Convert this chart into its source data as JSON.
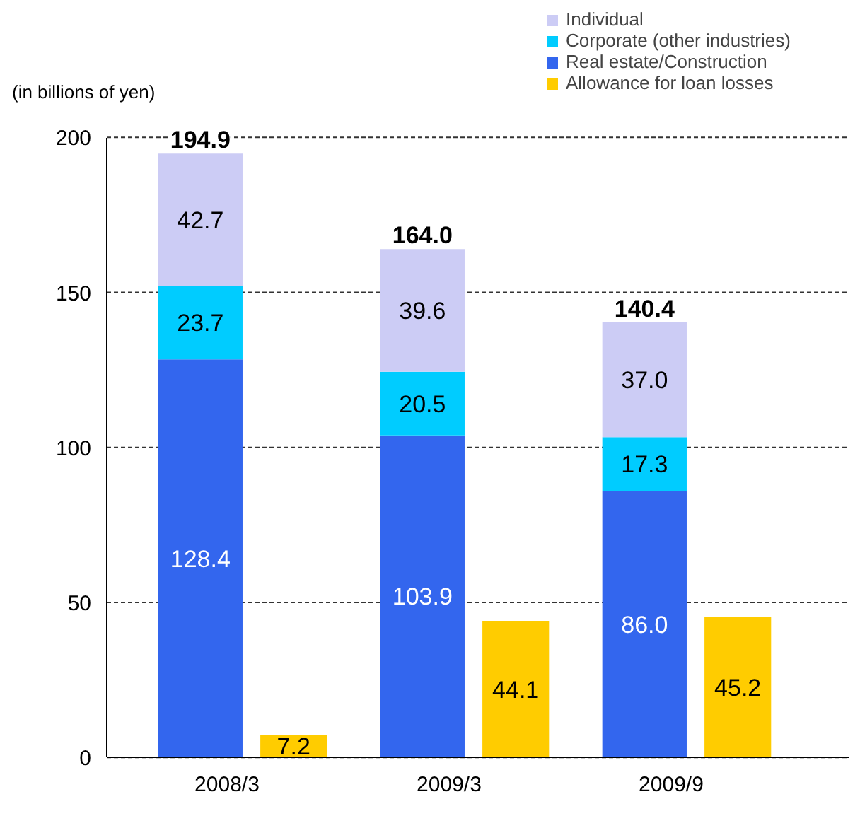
{
  "chart_data": {
    "type": "bar",
    "ylabel": "(in billions of yen)",
    "categories": [
      "2008/3",
      "2009/3",
      "2009/9"
    ],
    "ylim": [
      0,
      200
    ],
    "yticks": [
      0,
      50,
      100,
      150,
      200
    ],
    "grid": "y",
    "legend": "top right",
    "data_labels": true,
    "annotations": [
      {
        "text": "194.9",
        "x": "2008/3",
        "y": 194.9
      },
      {
        "text": "164.0",
        "x": "2009/3",
        "y": 164.0
      },
      {
        "text": "140.4",
        "x": "2009/9",
        "y": 140.4
      }
    ],
    "series": [
      {
        "name": "Real estate/Construction",
        "color": "#3366ee",
        "values": [
          128.4,
          103.9,
          86.0
        ],
        "value_labels": [
          "128.4",
          "103.9",
          "86.0"
        ],
        "base": [
          0,
          0,
          0
        ]
      },
      {
        "name": "Corporate (other industries)",
        "color": "#00ccff",
        "values": [
          23.7,
          20.5,
          17.3
        ],
        "base": [
          128.4,
          103.9,
          86.0
        ]
      },
      {
        "name": "Individual",
        "color": "#ccccf5",
        "values": [
          42.7,
          39.6,
          37.0
        ],
        "value_labels": [
          "42.7",
          "39.6",
          "37.0"
        ],
        "base": [
          152.1,
          124.4,
          103.3
        ]
      },
      {
        "name": "Allowance for loan losses",
        "color": "#ffcc00",
        "values": [
          7.2,
          44.1,
          45.2
        ]
      }
    ]
  }
}
